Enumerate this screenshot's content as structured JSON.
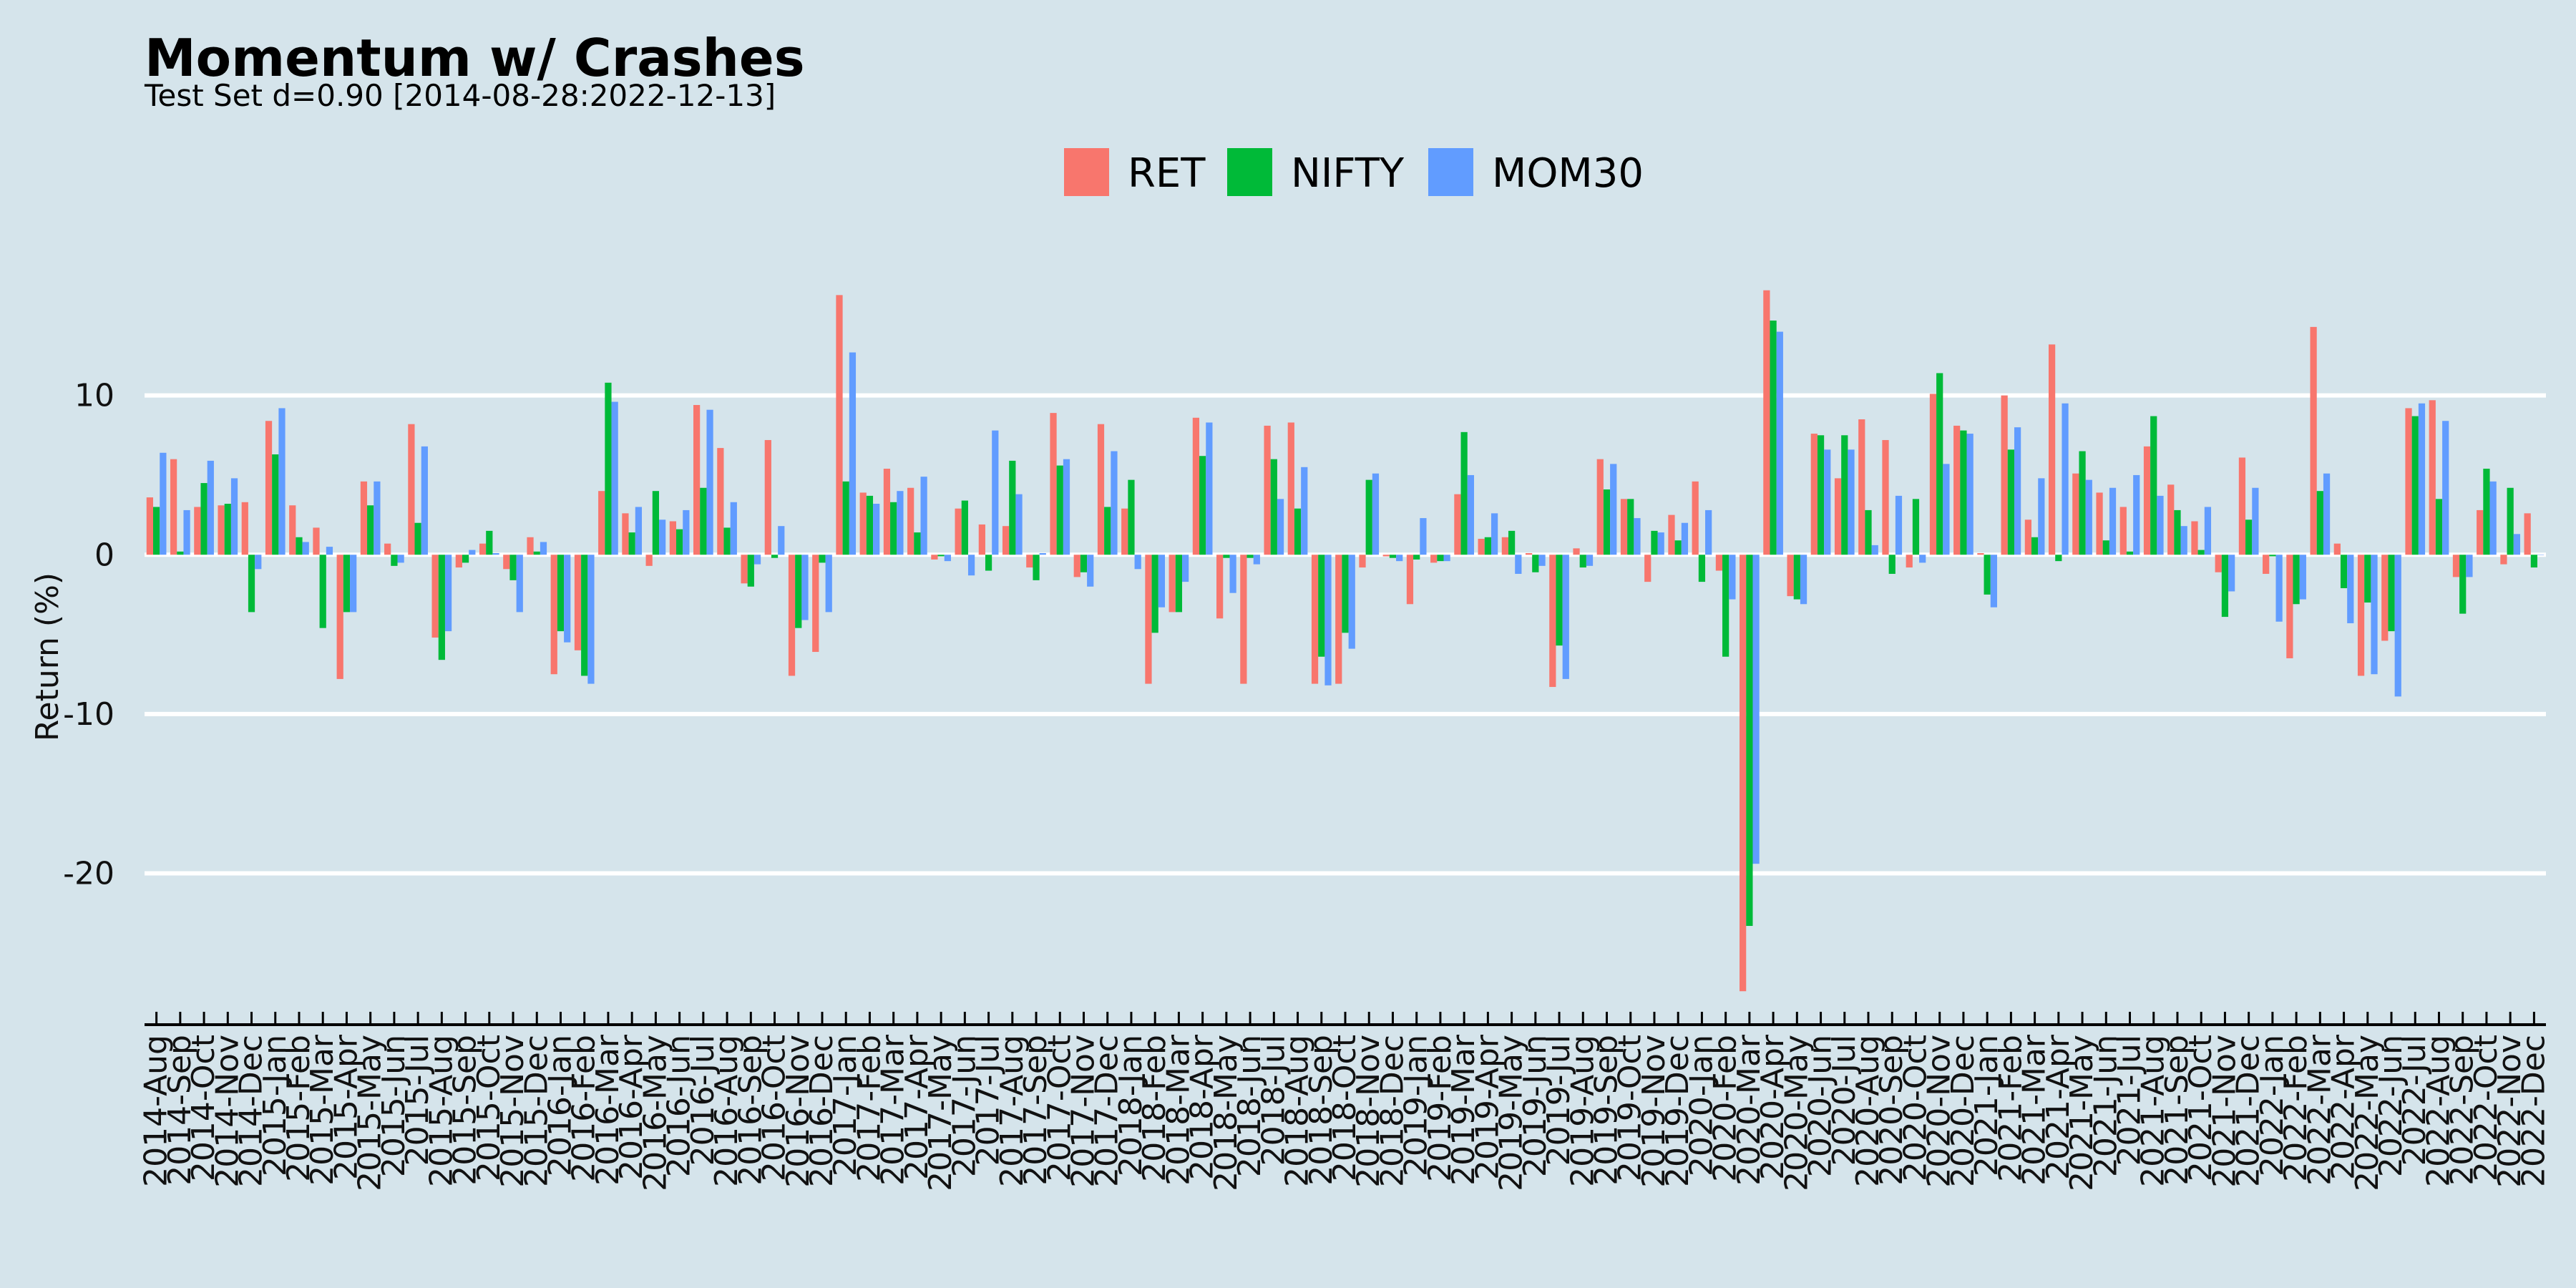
{
  "chart_data": {
    "type": "bar",
    "title": "Momentum w/ Crashes",
    "subtitle": "Test Set d=0.90 [2014-08-28:2022-12-13]",
    "xlabel": "",
    "ylabel": "Return (%)",
    "ylim": [
      -29.5,
      20
    ],
    "yticks": [
      10,
      0,
      -10,
      -20
    ],
    "ytick_labels": [
      "10",
      "0",
      "-10",
      "-20"
    ],
    "grid": "horizontal, white",
    "legend_position": "top-center",
    "categories": [
      "2014-Aug",
      "2014-Sep",
      "2014-Oct",
      "2014-Nov",
      "2014-Dec",
      "2015-Jan",
      "2015-Feb",
      "2015-Mar",
      "2015-Apr",
      "2015-May",
      "2015-Jun",
      "2015-Jul",
      "2015-Aug",
      "2015-Sep",
      "2015-Oct",
      "2015-Nov",
      "2015-Dec",
      "2016-Jan",
      "2016-Feb",
      "2016-Mar",
      "2016-Apr",
      "2016-May",
      "2016-Jun",
      "2016-Jul",
      "2016-Aug",
      "2016-Sep",
      "2016-Oct",
      "2016-Nov",
      "2016-Dec",
      "2017-Jan",
      "2017-Feb",
      "2017-Mar",
      "2017-Apr",
      "2017-May",
      "2017-Jun",
      "2017-Jul",
      "2017-Aug",
      "2017-Sep",
      "2017-Oct",
      "2017-Nov",
      "2017-Dec",
      "2018-Jan",
      "2018-Feb",
      "2018-Mar",
      "2018-Apr",
      "2018-May",
      "2018-Jun",
      "2018-Jul",
      "2018-Aug",
      "2018-Sep",
      "2018-Oct",
      "2018-Nov",
      "2018-Dec",
      "2019-Jan",
      "2019-Feb",
      "2019-Mar",
      "2019-Apr",
      "2019-May",
      "2019-Jun",
      "2019-Jul",
      "2019-Aug",
      "2019-Sep",
      "2019-Oct",
      "2019-Nov",
      "2019-Dec",
      "2020-Jan",
      "2020-Feb",
      "2020-Mar",
      "2020-Apr",
      "2020-May",
      "2020-Jun",
      "2020-Jul",
      "2020-Aug",
      "2020-Sep",
      "2020-Oct",
      "2020-Nov",
      "2020-Dec",
      "2021-Jan",
      "2021-Feb",
      "2021-Mar",
      "2021-Apr",
      "2021-May",
      "2021-Jun",
      "2021-Jul",
      "2021-Aug",
      "2021-Sep",
      "2021-Oct",
      "2021-Nov",
      "2021-Dec",
      "2022-Jan",
      "2022-Feb",
      "2022-Mar",
      "2022-Apr",
      "2022-May",
      "2022-Jun",
      "2022-Jul",
      "2022-Aug",
      "2022-Sep",
      "2022-Oct",
      "2022-Nov",
      "2022-Dec"
    ],
    "series": [
      {
        "name": "RET",
        "color": "#f8766d",
        "values": [
          3.6,
          6.0,
          3.0,
          3.1,
          3.3,
          8.4,
          3.1,
          1.7,
          -7.8,
          4.6,
          0.7,
          8.2,
          -5.2,
          -0.8,
          0.7,
          -0.9,
          1.1,
          -7.5,
          -6.0,
          4.0,
          2.6,
          -0.7,
          2.1,
          9.4,
          6.7,
          -1.8,
          7.2,
          -7.6,
          -6.1,
          16.3,
          3.9,
          5.4,
          4.2,
          -0.3,
          2.9,
          1.9,
          1.8,
          -0.8,
          8.9,
          -1.4,
          8.2,
          2.9,
          -8.1,
          -3.6,
          8.6,
          -4.0,
          -8.1,
          8.1,
          8.3,
          -8.1,
          -8.1,
          -0.8,
          -0.1,
          -3.1,
          -0.5,
          3.8,
          1.0,
          1.1,
          0.1,
          -8.3,
          0.4,
          6.0,
          3.5,
          -1.7,
          2.5,
          4.6,
          -1.0,
          -27.4,
          16.6,
          -2.6,
          7.6,
          4.8,
          8.5,
          7.2,
          -0.8,
          10.1,
          8.1,
          0.1,
          10.0,
          2.2,
          13.2,
          5.1,
          3.9,
          3.0,
          6.8,
          4.4,
          2.1,
          -1.1,
          6.1,
          -1.2,
          -6.5,
          14.3,
          0.7,
          -7.6,
          -5.4,
          9.2,
          9.7,
          -1.4,
          2.8,
          -0.6,
          2.6
        ]
      },
      {
        "name": "NIFTY",
        "color": "#00ba38",
        "values": [
          3.0,
          0.2,
          4.5,
          3.2,
          -3.6,
          6.3,
          1.1,
          -4.6,
          -3.6,
          3.1,
          -0.7,
          2.0,
          -6.6,
          -0.5,
          1.5,
          -1.6,
          0.2,
          -4.8,
          -7.6,
          10.8,
          1.4,
          4.0,
          1.6,
          4.2,
          1.7,
          -2.0,
          -0.2,
          -4.6,
          -0.5,
          4.6,
          3.7,
          3.3,
          1.4,
          -0.1,
          3.4,
          -1.0,
          5.9,
          -1.6,
          5.6,
          -1.1,
          3.0,
          4.7,
          -4.9,
          -3.6,
          6.2,
          -0.2,
          -0.2,
          6.0,
          2.9,
          -6.4,
          -4.9,
          4.7,
          -0.2,
          -0.3,
          -0.4,
          7.7,
          1.1,
          1.5,
          -1.1,
          -5.7,
          -0.8,
          4.1,
          3.5,
          1.5,
          0.9,
          -1.7,
          -6.4,
          -23.3,
          14.7,
          -2.8,
          7.5,
          7.5,
          2.8,
          -1.2,
          3.5,
          11.4,
          7.8,
          -2.5,
          6.6,
          1.1,
          -0.4,
          6.5,
          0.9,
          0.2,
          8.7,
          2.8,
          0.3,
          -3.9,
          2.2,
          -0.1,
          -3.1,
          4.0,
          -2.1,
          -3.0,
          -4.8,
          8.7,
          3.5,
          -3.7,
          5.4,
          4.2,
          -0.8
        ]
      },
      {
        "name": "MOM30",
        "color": "#619cff",
        "values": [
          6.4,
          2.8,
          5.9,
          4.8,
          -0.9,
          9.2,
          0.8,
          0.5,
          -3.6,
          4.6,
          -0.5,
          6.8,
          -4.8,
          0.3,
          0.1,
          -3.6,
          0.8,
          -5.5,
          -8.1,
          9.6,
          3.0,
          2.2,
          2.8,
          9.1,
          3.3,
          -0.6,
          1.8,
          -4.1,
          -3.6,
          12.7,
          3.2,
          4.0,
          4.9,
          -0.4,
          -1.3,
          7.8,
          3.8,
          0.1,
          6.0,
          -2.0,
          6.5,
          -0.9,
          -3.3,
          -1.7,
          8.3,
          -2.4,
          -0.6,
          3.5,
          5.5,
          -8.2,
          -5.9,
          5.1,
          -0.4,
          2.3,
          -0.4,
          5.0,
          2.6,
          -1.2,
          -0.7,
          -7.8,
          -0.7,
          5.7,
          2.3,
          1.4,
          2.0,
          2.8,
          -2.8,
          -19.4,
          14.0,
          -3.1,
          6.6,
          6.6,
          0.6,
          3.7,
          -0.5,
          5.7,
          7.6,
          -3.3,
          8.0,
          4.8,
          9.5,
          4.7,
          4.2,
          5.0,
          3.7,
          1.8,
          3.0,
          -2.3,
          4.2,
          -4.2,
          -2.8,
          5.1,
          -4.3,
          -7.5,
          -8.9,
          9.5,
          8.4,
          -1.4,
          4.6,
          1.3,
          0.0
        ]
      }
    ]
  }
}
